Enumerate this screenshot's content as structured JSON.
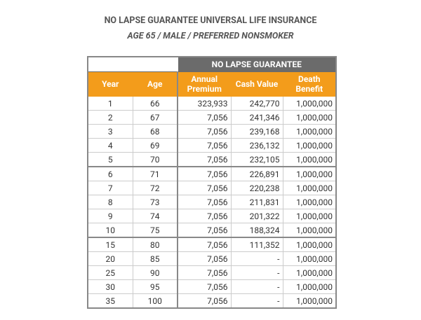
{
  "header": {
    "title": "NO LAPSE GUARANTEE UNIVERSAL LIFE INSURANCE",
    "subtitle": "AGE 65 / MALE / PREFERRED NONSMOKER"
  },
  "table": {
    "group_header": "NO LAPSE GUARANTEE",
    "columns": [
      "Year",
      "Age",
      "Annual Premium",
      "Cash Value",
      "Death Benefit"
    ],
    "rows": [
      [
        "1",
        "66",
        "323,933",
        "242,770",
        "1,000,000"
      ],
      [
        "2",
        "67",
        "7,056",
        "241,346",
        "1,000,000"
      ],
      [
        "3",
        "68",
        "7,056",
        "239,168",
        "1,000,000"
      ],
      [
        "4",
        "69",
        "7,056",
        "236,132",
        "1,000,000"
      ],
      [
        "5",
        "70",
        "7,056",
        "232,105",
        "1,000,000"
      ],
      [
        "6",
        "71",
        "7,056",
        "226,891",
        "1,000,000"
      ],
      [
        "7",
        "72",
        "7,056",
        "220,238",
        "1,000,000"
      ],
      [
        "8",
        "73",
        "7,056",
        "211,831",
        "1,000,000"
      ],
      [
        "9",
        "74",
        "7,056",
        "201,322",
        "1,000,000"
      ],
      [
        "10",
        "75",
        "7,056",
        "188,324",
        "1,000,000"
      ],
      [
        "15",
        "80",
        "7,056",
        "111,352",
        "1,000,000"
      ],
      [
        "20",
        "85",
        "7,056",
        "-",
        "1,000,000"
      ],
      [
        "25",
        "90",
        "7,056",
        "-",
        "1,000,000"
      ],
      [
        "30",
        "95",
        "7,056",
        "-",
        "1,000,000"
      ],
      [
        "35",
        "100",
        "7,056",
        "-",
        "1,000,000"
      ]
    ]
  }
}
